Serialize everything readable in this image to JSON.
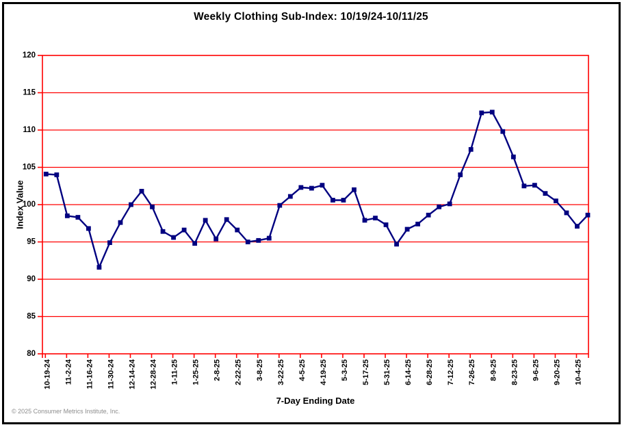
{
  "page": {
    "footer": "© 2025 Consumer Metrics Institute, Inc."
  },
  "chart_data": {
    "type": "line",
    "title": "Weekly Clothing Sub-Index: 10/19/24-10/11/25",
    "xlabel": "7-Day Ending Date",
    "ylabel": "Index Value",
    "ylim": [
      80,
      120
    ],
    "y_ticks": [
      80,
      85,
      90,
      95,
      100,
      105,
      110,
      115,
      120
    ],
    "grid": "horizontal",
    "legend": "none",
    "x_label_every": 2,
    "x": [
      "10-19-24",
      "10-26-24",
      "11-2-24",
      "11-9-24",
      "11-16-24",
      "11-23-24",
      "11-30-24",
      "12-7-24",
      "12-14-24",
      "12-21-24",
      "12-28-24",
      "1-4-25",
      "1-11-25",
      "1-18-25",
      "1-25-25",
      "2-1-25",
      "2-8-25",
      "2-15-25",
      "2-22-25",
      "3-1-25",
      "3-8-25",
      "3-15-25",
      "3-22-25",
      "3-29-25",
      "4-5-25",
      "4-12-25",
      "4-19-25",
      "4-26-25",
      "5-3-25",
      "5-10-25",
      "5-17-25",
      "5-24-25",
      "5-31-25",
      "6-7-25",
      "6-14-25",
      "6-21-25",
      "6-28-25",
      "7-5-25",
      "7-12-25",
      "7-19-25",
      "7-26-25",
      "8-2-25",
      "8-9-25",
      "8-16-25",
      "8-23-25",
      "8-30-25",
      "9-6-25",
      "9-13-25",
      "9-20-25",
      "9-27-25",
      "10-4-25",
      "10-11-25"
    ],
    "series": [
      {
        "name": "Weekly Clothing Sub-Index",
        "values": [
          104.1,
          104.0,
          98.5,
          98.3,
          96.8,
          91.6,
          94.9,
          97.6,
          100.0,
          101.8,
          99.7,
          96.4,
          95.6,
          96.6,
          94.8,
          97.9,
          95.4,
          98.0,
          96.6,
          95.0,
          95.2,
          95.5,
          99.9,
          101.1,
          102.3,
          102.2,
          102.6,
          100.6,
          100.6,
          102.0,
          97.9,
          98.2,
          97.3,
          94.7,
          96.7,
          97.4,
          98.6,
          99.7,
          100.1,
          104.0,
          107.4,
          112.3,
          112.4,
          109.8,
          106.4,
          102.5,
          102.6,
          101.5,
          100.5,
          98.9,
          97.1,
          98.6
        ]
      }
    ],
    "colors": {
      "line": "#000080",
      "marker": "#000080",
      "grid": "#ff0000",
      "axis": "#ff0000",
      "tick_text": "#000000",
      "footer_text": "#8c8c8c"
    }
  }
}
